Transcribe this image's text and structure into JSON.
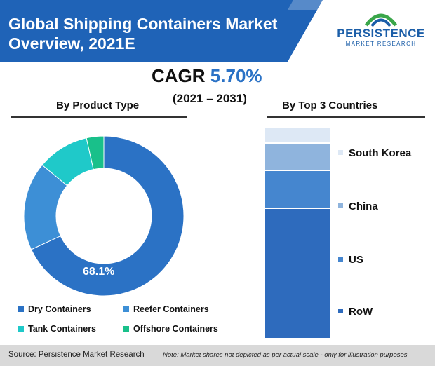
{
  "header": {
    "title_line1": "Global Shipping Containers Market",
    "title_line2": "Overview, 2021E",
    "band_color": "#1f63b7"
  },
  "logo": {
    "brand": "PERSISTENCE",
    "subtitle": "MARKET RESEARCH",
    "icon": "persistence-logo-mark"
  },
  "cagr": {
    "label": "CAGR",
    "value": "5.70%",
    "range": "(2021 – 2031)"
  },
  "chart_data": [
    {
      "type": "pie",
      "variant": "donut",
      "title": "By Product Type",
      "categories": [
        "Dry Containers",
        "Reefer Containers",
        "Tank Containers",
        "Offshore Containers"
      ],
      "values": [
        68.1,
        17.9,
        10.5,
        3.5
      ],
      "colors": [
        "#2b72c5",
        "#3d8fd6",
        "#1fc9c9",
        "#19c08a"
      ],
      "data_labels": [
        "68.1%",
        "",
        "",
        ""
      ],
      "legend": "bottom"
    },
    {
      "type": "bar",
      "variant": "stacked-100",
      "title": "By Top 3 Countries",
      "categories": [
        "RoW",
        "US",
        "China",
        "South Korea"
      ],
      "values": [
        62,
        18,
        13,
        7
      ],
      "colors": [
        "#2e6bbd",
        "#4586cf",
        "#8fb4dd",
        "#dde8f5"
      ],
      "legend": "right"
    }
  ],
  "footer": {
    "source": "Source: Persistence Market Research",
    "note": "Note: Market shares not depicted as per actual scale - only for illustration purposes"
  }
}
